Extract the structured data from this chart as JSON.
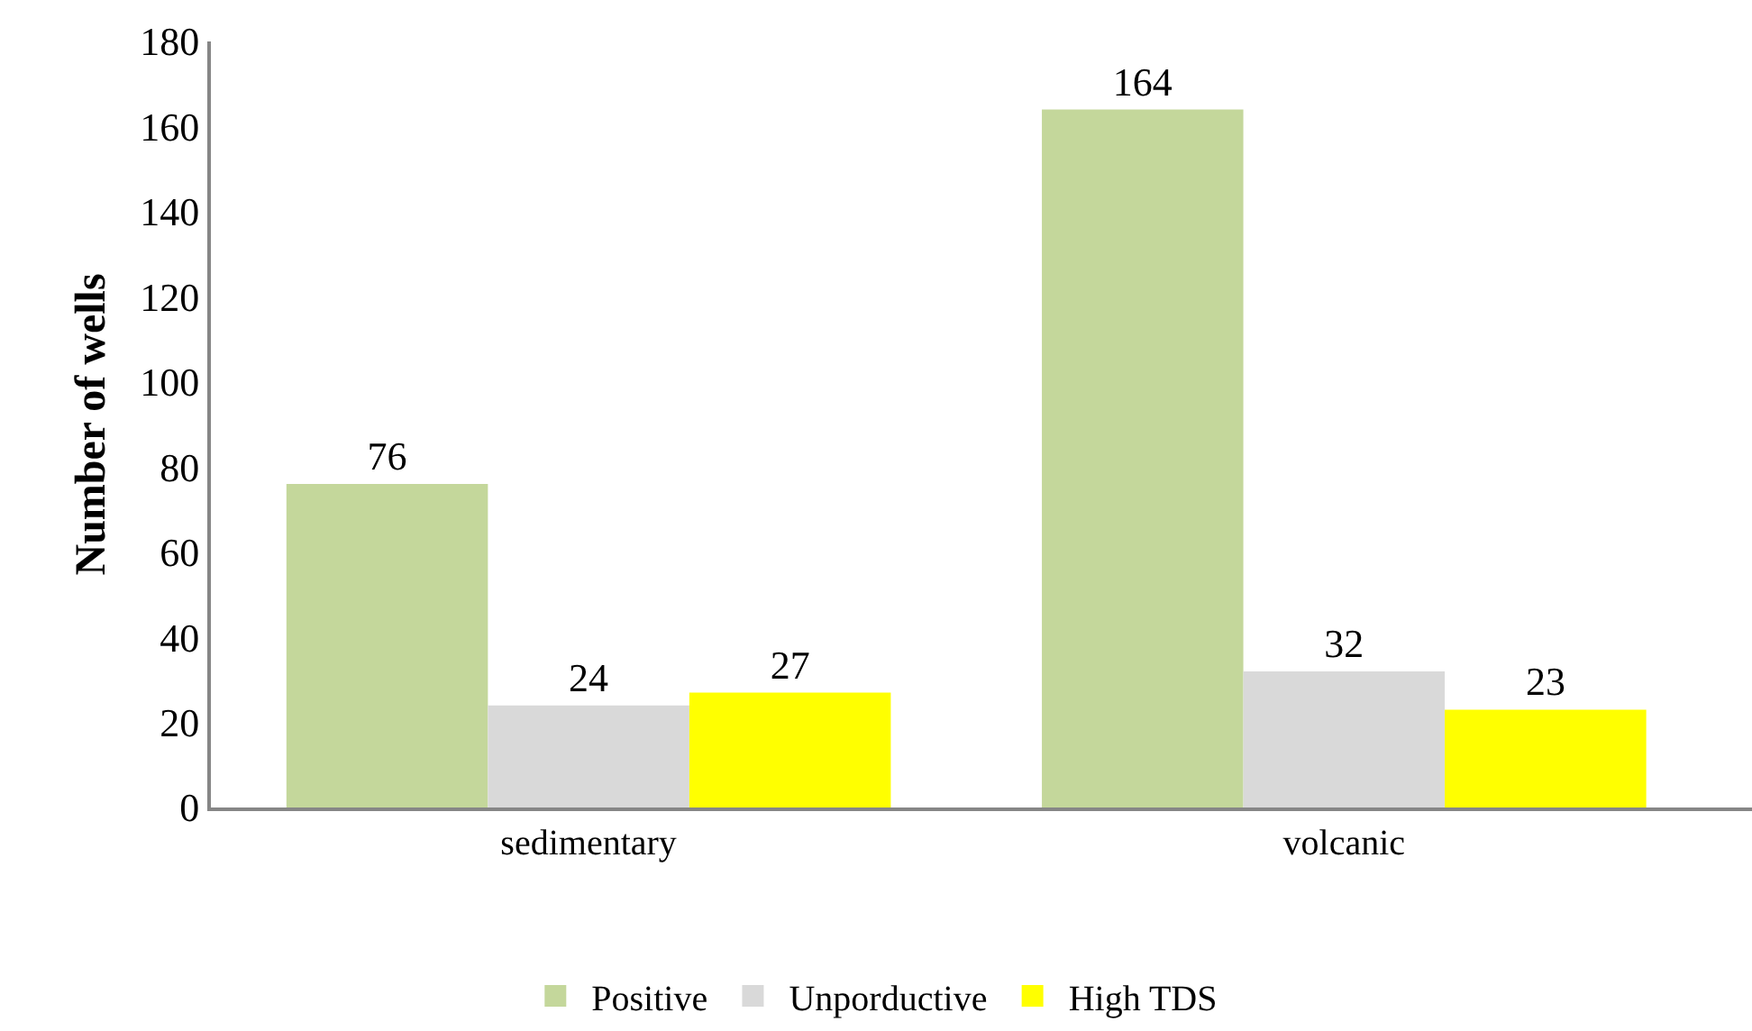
{
  "chart_data": {
    "type": "bar",
    "ylabel": "Number of wells",
    "categories": [
      "sedimentary",
      "volcanic"
    ],
    "series": [
      {
        "name": "Positive",
        "color": "#c4d79b",
        "values": [
          76,
          164
        ]
      },
      {
        "name": "Unporductive",
        "color": "#d9d9d9",
        "values": [
          24,
          32
        ]
      },
      {
        "name": "High TDS",
        "color": "#ffff00",
        "values": [
          27,
          23
        ]
      }
    ],
    "ylim": [
      0,
      180
    ],
    "yticks": [
      0,
      20,
      40,
      60,
      80,
      100,
      120,
      140,
      160,
      180
    ],
    "data_labels": true,
    "grid": false,
    "legend": "bottom"
  }
}
